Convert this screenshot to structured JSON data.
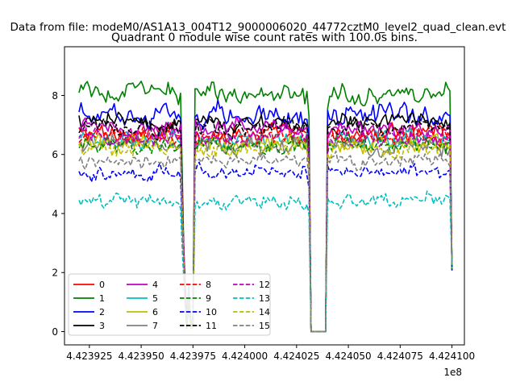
{
  "chart_data": {
    "type": "line",
    "suptitle": "Data from file: modeM0/AS1A13_004T12_9000006020_44772cztM0_level2_quad_clean.evt",
    "title": "Quadrant 0 module wise count rates with 100.0s bins.",
    "xlabel": "",
    "ylabel": "",
    "x_offset_label": "1e8",
    "xlim": [
      442391300,
      442410600
    ],
    "ylim": [
      -0.45,
      9.65
    ],
    "x_ticks": [
      442392500,
      442395000,
      442397500,
      442400000,
      442402500,
      442405000,
      442407500,
      442410000
    ],
    "x_tick_labels": [
      "4.423925",
      "4.423950",
      "4.423975",
      "4.424000",
      "4.424025",
      "4.424050",
      "4.424075",
      "4.424100"
    ],
    "y_ticks": [
      0,
      2,
      4,
      6,
      8
    ],
    "y_tick_labels": [
      "0",
      "2",
      "4",
      "6",
      "8"
    ],
    "grid": false,
    "legend_position": "lower-left",
    "legend_columns": 4,
    "bin_seconds": 100,
    "x_start": 442392000,
    "x_step": 100,
    "segments": [
      {
        "from": 442392000,
        "to": 442397100,
        "level": "on"
      },
      {
        "from": 442397100,
        "to": 442397300,
        "level": "dip"
      },
      {
        "from": 442397400,
        "to": 442397600,
        "level": "dip"
      },
      {
        "from": 442397600,
        "to": 442403200,
        "level": "on"
      },
      {
        "from": 442403200,
        "to": 442403500,
        "level": "zero"
      },
      {
        "from": 442403500,
        "to": 442403600,
        "level": "off"
      },
      {
        "from": 442403600,
        "to": 442404000,
        "level": "zero"
      },
      {
        "from": 442404000,
        "to": 442410000,
        "level": "on"
      }
    ],
    "series": [
      {
        "name": "0",
        "color": "#ff0000",
        "dash": "solid",
        "mean": 6.7,
        "noise": 0.35
      },
      {
        "name": "1",
        "color": "#008000",
        "dash": "solid",
        "mean": 8.1,
        "noise": 0.4
      },
      {
        "name": "2",
        "color": "#0000ff",
        "dash": "solid",
        "mean": 7.3,
        "noise": 0.45
      },
      {
        "name": "3",
        "color": "#000000",
        "dash": "solid",
        "mean": 7.1,
        "noise": 0.35
      },
      {
        "name": "4",
        "color": "#bf00bf",
        "dash": "solid",
        "mean": 6.9,
        "noise": 0.35
      },
      {
        "name": "5",
        "color": "#00bfbf",
        "dash": "solid",
        "mean": 6.5,
        "noise": 0.35
      },
      {
        "name": "6",
        "color": "#bfbf00",
        "dash": "solid",
        "mean": 6.4,
        "noise": 0.35
      },
      {
        "name": "7",
        "color": "#808080",
        "dash": "solid",
        "mean": 6.3,
        "noise": 0.35
      },
      {
        "name": "8",
        "color": "#ff0000",
        "dash": "dashed",
        "mean": 6.6,
        "noise": 0.35
      },
      {
        "name": "9",
        "color": "#008000",
        "dash": "dashed",
        "mean": 6.3,
        "noise": 0.35
      },
      {
        "name": "10",
        "color": "#0000ff",
        "dash": "dashed",
        "mean": 5.4,
        "noise": 0.3
      },
      {
        "name": "11",
        "color": "#000000",
        "dash": "dashed",
        "mean": 6.9,
        "noise": 0.35
      },
      {
        "name": "12",
        "color": "#bf00bf",
        "dash": "dashed",
        "mean": 6.6,
        "noise": 0.35
      },
      {
        "name": "13",
        "color": "#00bfbf",
        "dash": "dashed",
        "mean": 4.4,
        "noise": 0.3
      },
      {
        "name": "14",
        "color": "#bfbf00",
        "dash": "dashed",
        "mean": 6.2,
        "noise": 0.35
      },
      {
        "name": "15",
        "color": "#808080",
        "dash": "dashed",
        "mean": 5.8,
        "noise": 0.3
      }
    ]
  }
}
